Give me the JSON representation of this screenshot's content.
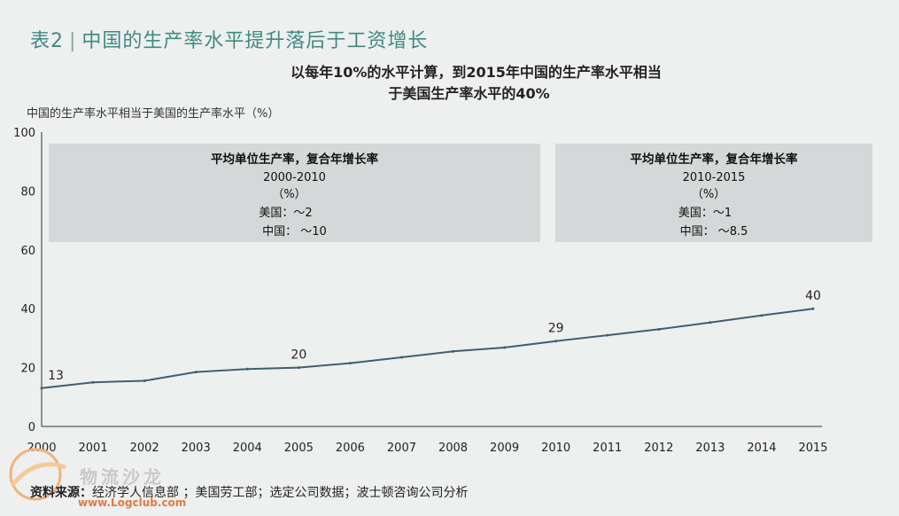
{
  "header": {
    "title_prefix": "表2",
    "title_sep": "|",
    "title": "中国的生产率水平提升落后于工资增长"
  },
  "subtitle": {
    "line1": "以每年10%的水平计算，到2015年中国的生产率水平相当",
    "line2": "于美国生产率水平的40%"
  },
  "source": {
    "label": "资料来源：",
    "text": "经济学人信息部 ；美国劳工部；选定公司数据；波士顿咨询公司分析"
  },
  "watermark": {
    "text": "物流沙龙",
    "url": "www.Logclub.com"
  },
  "annotations": [
    {
      "title": "平均单位生产率，复合年增长率",
      "period": "2000-2010",
      "unit": "（%）",
      "us": "美国：～2",
      "cn": "中国：  ～10"
    },
    {
      "title": "平均单位生产率，复合年增长率",
      "period": "2010-2015",
      "unit": "（%）",
      "us": "美国：～1",
      "cn": "中国：  ～8.5"
    }
  ],
  "colors": {
    "line": "#3e5f73",
    "box": "#d5d8d8",
    "title": "#3f8a80",
    "background": "#eef0ef"
  },
  "chart_data": {
    "type": "line",
    "ylabel": "中国的生产率水平相当于美国的生产率水平（%）",
    "xlabel": "",
    "x": [
      "2000",
      "2001",
      "2002",
      "2003",
      "2004",
      "2005",
      "2006",
      "2007",
      "2008",
      "2009",
      "2010",
      "2011",
      "2012",
      "2013",
      "2014",
      "2015"
    ],
    "series": [
      {
        "values": [
          13,
          15,
          15.5,
          18.5,
          19.5,
          20,
          21.5,
          23.5,
          25.5,
          26.8,
          29,
          31,
          33,
          35.3,
          37.7,
          40
        ]
      }
    ],
    "data_labels": [
      {
        "x": "2000",
        "value": "13"
      },
      {
        "x": "2005",
        "value": "20"
      },
      {
        "x": "2010",
        "value": "29"
      },
      {
        "x": "2015",
        "value": "40"
      }
    ],
    "ylim": [
      0,
      100
    ],
    "yticks": [
      0,
      20,
      40,
      60,
      80,
      100
    ],
    "grid": false
  }
}
